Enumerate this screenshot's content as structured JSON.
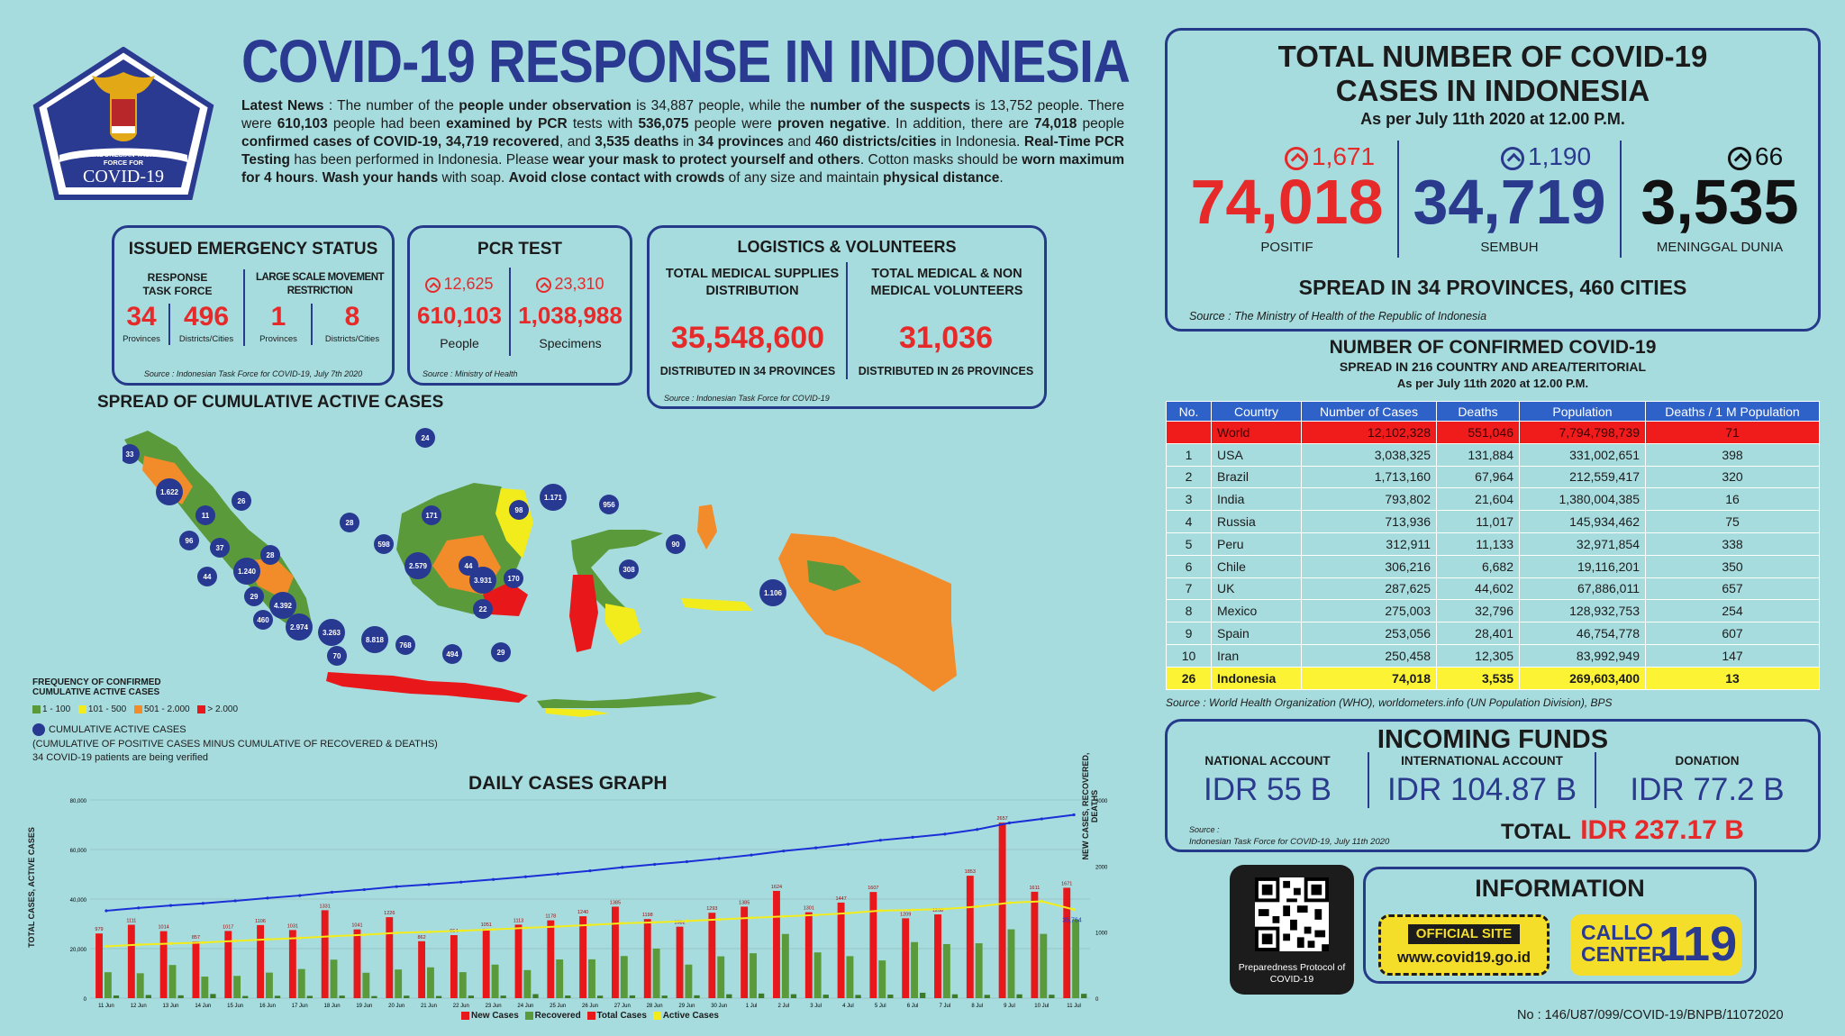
{
  "logo": {
    "line1": "INDONESIAN TASK",
    "line2": "FORCE FOR",
    "line3": "COVID-19",
    "line4": "RESPONSE ACCELERATION"
  },
  "title": "COVID-19 RESPONSE IN INDONESIA",
  "news": {
    "p1": "Latest News",
    "p2": " : The number of the ",
    "p3": "people under observation",
    "p4": " is 34,887 people, while the ",
    "p5": "number of the suspects",
    "p6": " is 13,752 people. There were ",
    "p7": "610,103",
    "p8": " people had been ",
    "p9": "examined by PCR",
    "p10": " tests with ",
    "p11": "536,075",
    "p12": " people were ",
    "p13": "proven negative",
    "p14": ". In addition, there are ",
    "p15": "74,018",
    "p16": " people ",
    "p17": "confirmed cases of COVID-19, 34,719 recovered",
    "p18": ", and ",
    "p19": "3,535 deaths",
    "p20": " in ",
    "p21": "34 provinces",
    "p22": " and ",
    "p23": "460 districts/cities",
    "p24": " in Indonesia. ",
    "p25": "Real-Time PCR Testing",
    "p26": " has been performed in Indonesia. Please ",
    "p27": "wear your mask to protect yourself and others",
    "p28": ". Cotton masks should be ",
    "p29": "worn maximum for 4 hours",
    "p30": ". ",
    "p31": "Wash your hands",
    "p32": " with soap. ",
    "p33": "Avoid close contact with crowds",
    "p34": " of any size and maintain ",
    "p35": "physical distance",
    "p36": "."
  },
  "emergency": {
    "title": "ISSUED EMERGENCY STATUS",
    "col1": "RESPONSE TASK FORCE",
    "col2": "LARGE SCALE MOVEMENT RESTRICTION",
    "v1": "34",
    "l1": "Provinces",
    "v2": "496",
    "l2": "Districts/Cities",
    "v3": "1",
    "l3": "Provinces",
    "v4": "8",
    "l4": "Districts/Cities",
    "source": "Source : Indonesian Task Force for COVID-19, July 7th 2020"
  },
  "pcr": {
    "title": "PCR TEST",
    "inc1": "12,625",
    "inc2": "23,310",
    "v1": "610,103",
    "l1": "People",
    "v2": "1,038,988",
    "l2": "Specimens",
    "source": "Source : Ministry of Health"
  },
  "logistics": {
    "title": "LOGISTICS & VOLUNTEERS",
    "h1": "TOTAL MEDICAL SUPPLIES DISTRIBUTION",
    "v1": "35,548,600",
    "f1": "DISTRIBUTED IN 34 PROVINCES",
    "h2": "TOTAL MEDICAL & NON MEDICAL VOLUNTEERS",
    "v2": "31,036",
    "f2": "DISTRIBUTED IN 26 PROVINCES",
    "source": "Source : Indonesian Task Force for COVID-19"
  },
  "total": {
    "title1": "TOTAL NUMBER OF COVID-19",
    "title2": "CASES IN INDONESIA",
    "asof": "As per July 11th 2020 at 12.00 P.M.",
    "inc_pos": "1,671",
    "pos": "74,018",
    "pos_label": "POSITIF",
    "inc_rec": "1,190",
    "rec": "34,719",
    "rec_label": "SEMBUH",
    "inc_dead": "66",
    "dead": "3,535",
    "dead_label": "MENINGGAL DUNIA",
    "spread": "SPREAD IN 34 PROVINCES, 460 CITIES",
    "source": "Source : The Ministry of Health of the Republic of Indonesia",
    "colors": {
      "pos": "#e62a2a",
      "rec": "#2a3a8c",
      "dead": "#111111"
    }
  },
  "world": {
    "title": "NUMBER OF CONFIRMED COVID-19",
    "subtitle": "SPREAD IN 216 COUNTRY AND AREA/TERITORIAL",
    "asof": "As per July 11th 2020 at 12.00 P.M.",
    "headers": [
      "No.",
      "Country",
      "Number of Cases",
      "Deaths",
      "Population",
      "Deaths / 1 M Population"
    ],
    "rows": [
      [
        "",
        "World",
        "12,102,328",
        "551,046",
        "7,794,798,739",
        "71"
      ],
      [
        "1",
        "USA",
        "3,038,325",
        "131,884",
        "331,002,651",
        "398"
      ],
      [
        "2",
        "Brazil",
        "1,713,160",
        "67,964",
        "212,559,417",
        "320"
      ],
      [
        "3",
        "India",
        "793,802",
        "21,604",
        "1,380,004,385",
        "16"
      ],
      [
        "4",
        "Russia",
        "713,936",
        "11,017",
        "145,934,462",
        "75"
      ],
      [
        "5",
        "Peru",
        "312,911",
        "11,133",
        "32,971,854",
        "338"
      ],
      [
        "6",
        "Chile",
        "306,216",
        "6,682",
        "19,116,201",
        "350"
      ],
      [
        "7",
        "UK",
        "287,625",
        "44,602",
        "67,886,011",
        "657"
      ],
      [
        "8",
        "Mexico",
        "275,003",
        "32,796",
        "128,932,753",
        "254"
      ],
      [
        "9",
        "Spain",
        "253,056",
        "28,401",
        "46,754,778",
        "607"
      ],
      [
        "10",
        "Iran",
        "250,458",
        "12,305",
        "83,992,949",
        "147"
      ],
      [
        "26",
        "Indonesia",
        "74,018",
        "3,535",
        "269,603,400",
        "13"
      ]
    ],
    "source": "Source : World Health Organization (WHO), worldometers.info (UN Population Division), BPS"
  },
  "funds": {
    "title": "INCOMING FUNDS",
    "h1": "NATIONAL ACCOUNT",
    "v1": "IDR 55 B",
    "h2": "INTERNATIONAL ACCOUNT",
    "v2": "IDR 104.87 B",
    "h3": "DONATION",
    "v3": "IDR 77.2 B",
    "source1": "Source :",
    "source2": "Indonesian Task Force for COVID-19, July 11th 2020",
    "total_label": "TOTAL",
    "total": "IDR 237.17 B"
  },
  "qr": {
    "label": "Preparedness Protocol of COVID-19"
  },
  "info": {
    "title": "INFORMATION",
    "site_label": "OFFICIAL SITE",
    "site": "www.covid19.go.id",
    "call1": "CALL",
    "call2": "CENTER",
    "call_num": "119"
  },
  "map": {
    "title": "SPREAD OF CUMULATIVE ACTIVE CASES",
    "legend_title1": "FREQUENCY OF CONFIRMED",
    "legend_title2": "CUMULATIVE ACTIVE CASES",
    "legend": [
      {
        "label": "1 - 100",
        "color": "#5a9a3a"
      },
      {
        "label": "101 - 500",
        "color": "#f2ec1d"
      },
      {
        "label": "501 - 2.000",
        "color": "#f28c2a"
      },
      {
        "label": "> 2.000",
        "color": "#e8171a"
      }
    ],
    "bubble_label": "CUMULATIVE ACTIVE CASES",
    "bubble_note": "(CUMULATIVE OF POSITIVE CASES MINUS CUMULATIVE OF RECOVERED & DEATHS)",
    "verify_note": "34 COVID-19 patients are being verified",
    "bubbles": [
      "33",
      "1.622",
      "26",
      "11",
      "96",
      "37",
      "28",
      "1.240",
      "44",
      "29",
      "4.392",
      "460",
      "2.974",
      "3.263",
      "70",
      "8.818",
      "768",
      "494",
      "29",
      "28",
      "598",
      "24",
      "171",
      "2.579",
      "44",
      "3.931",
      "22",
      "170",
      "98",
      "1.171",
      "956",
      "90",
      "308",
      "1.106"
    ]
  },
  "graph": {
    "title": "DAILY CASES GRAPH",
    "ylabel_left": "TOTAL CASES, ACTIVE CASES",
    "ylabel_right": "NEW CASES, RECOVERED, DEATHS",
    "legend": [
      "New Cases",
      "Recovered",
      "Total Cases",
      "Active Cases"
    ],
    "end_label": "35,764"
  },
  "doc_no": "No : 146/U87/099/COVID-19/BNPB/11072020",
  "chart_data": {
    "type": "bar",
    "title": "DAILY CASES GRAPH",
    "xlabel": "",
    "ylabel": "TOTAL CASES, ACTIVE CASES",
    "y2label": "NEW CASES, RECOVERED, DEATHS",
    "ylim": [
      0,
      80000
    ],
    "y2lim": [
      0,
      3000
    ],
    "categories": [
      "11 Jun",
      "12 Jun",
      "13 Jun",
      "14 Jun",
      "15 Jun",
      "16 Jun",
      "17 Jun",
      "18 Jun",
      "19 Jun",
      "20 Jun",
      "21 Jun",
      "22 Jun",
      "23 Jun",
      "24 Jun",
      "25 Jun",
      "26 Jun",
      "27 Jun",
      "28 Jun",
      "29 Jun",
      "30 Jun",
      "1 Jul",
      "2 Jul",
      "3 Jul",
      "4 Jul",
      "5 Jul",
      "6 Jul",
      "7 Jul",
      "8 Jul",
      "9 Jul",
      "10 Jul",
      "11 Jul"
    ],
    "series": [
      {
        "name": "New Cases",
        "type": "bar",
        "axis": "right",
        "color": "#e8171a",
        "values": [
          979,
          1111,
          1014,
          857,
          1017,
          1106,
          1031,
          1331,
          1041,
          1226,
          862,
          954,
          1051,
          1113,
          1178,
          1240,
          1385,
          1198,
          1082,
          1293,
          1385,
          1624,
          1301,
          1447,
          1607,
          1209,
          1268,
          1853,
          2657,
          1611,
          1671
        ]
      },
      {
        "name": "Recovered",
        "type": "bar",
        "axis": "right",
        "color": "#5a9a3a",
        "values": [
          393,
          377,
          502,
          326,
          337,
          387,
          441,
          583,
          385,
          434,
          467,
          394,
          508,
          425,
          586,
          588,
          638,
          750,
          508,
          633,
          680,
          972,
          693,
          636,
          571,
          849,
          819,
          831,
          1042,
          973,
          1190
        ]
      },
      {
        "name": "Deaths",
        "type": "bar",
        "axis": "right",
        "color": "#5a9a3a",
        "values": [
          41,
          48,
          43,
          63,
          33,
          36,
          35,
          39,
          32,
          38,
          33,
          39,
          39,
          61,
          40,
          38,
          42,
          39,
          43,
          59,
          70,
          60,
          53,
          49,
          54,
          82,
          58,
          50,
          58,
          52,
          66
        ]
      },
      {
        "name": "Total Cases",
        "type": "line",
        "axis": "left",
        "color": "#1b2fd6",
        "values": [
          35295,
          36406,
          37420,
          38277,
          39294,
          40400,
          41431,
          42762,
          43803,
          45029,
          45891,
          46845,
          47896,
          49009,
          50187,
          51427,
          52812,
          54010,
          55092,
          56385,
          57770,
          59394,
          60695,
          62142,
          63749,
          64958,
          66226,
          68079,
          70736,
          72347,
          74018
        ]
      },
      {
        "name": "Active Cases",
        "type": "line",
        "axis": "left",
        "color": "#f2ec1d",
        "values": [
          20924,
          21583,
          22037,
          22472,
          23094,
          23737,
          24291,
          24981,
          25604,
          26359,
          26723,
          27244,
          27748,
          28374,
          28926,
          29542,
          30221,
          30612,
          31147,
          31773,
          32426,
          33016,
          33568,
          34325,
          35305,
          35611,
          35992,
          36959,
          38505,
          39090,
          35764
        ]
      }
    ]
  }
}
